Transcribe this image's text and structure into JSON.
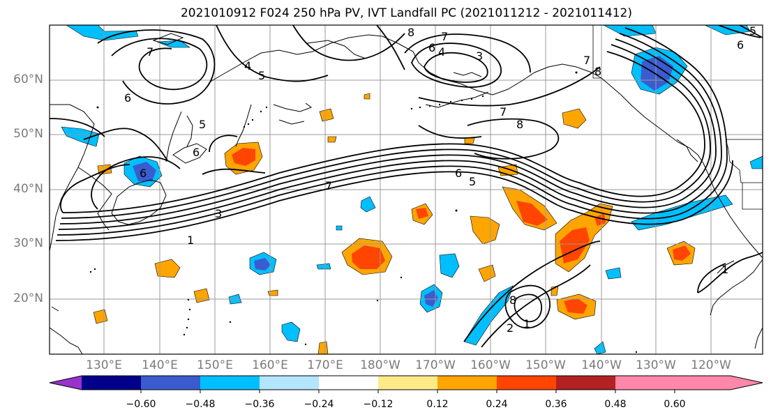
{
  "title": "2021010912 F024 250 hPa PV, IVT Landfall PC (2021011212 - 2021011412)",
  "lat_labels": [
    "60°N",
    "50°N",
    "40°N",
    "30°N",
    "20°N"
  ],
  "lon_labels": [
    "130°E",
    "140°E",
    "150°E",
    "160°E",
    "170°E",
    "180°W",
    "170°W",
    "160°W",
    "150°W",
    "140°W",
    "130°W",
    "120°W"
  ],
  "colorbar": {
    "ticks": [
      "−0.60",
      "−0.48",
      "−0.36",
      "−0.24",
      "−0.12",
      "0.12",
      "0.24",
      "0.36",
      "0.48",
      "0.60"
    ],
    "colors": [
      "#9932cc",
      "#00008b",
      "#3a5ccf",
      "#00bfff",
      "#b3e5fc",
      "#ffffff",
      "#ffea8a",
      "#ffa500",
      "#ff4500",
      "#b22222",
      "#ff88aa"
    ]
  },
  "contour_labels": [
    "8",
    "7",
    "6",
    "4",
    "3",
    "7",
    "5",
    "4",
    "7",
    "8",
    "6",
    "5",
    "6",
    "6",
    "3",
    "1",
    "7",
    "6",
    "5",
    "7",
    "8",
    "8",
    "2",
    "1",
    "1",
    "5",
    "6"
  ]
}
